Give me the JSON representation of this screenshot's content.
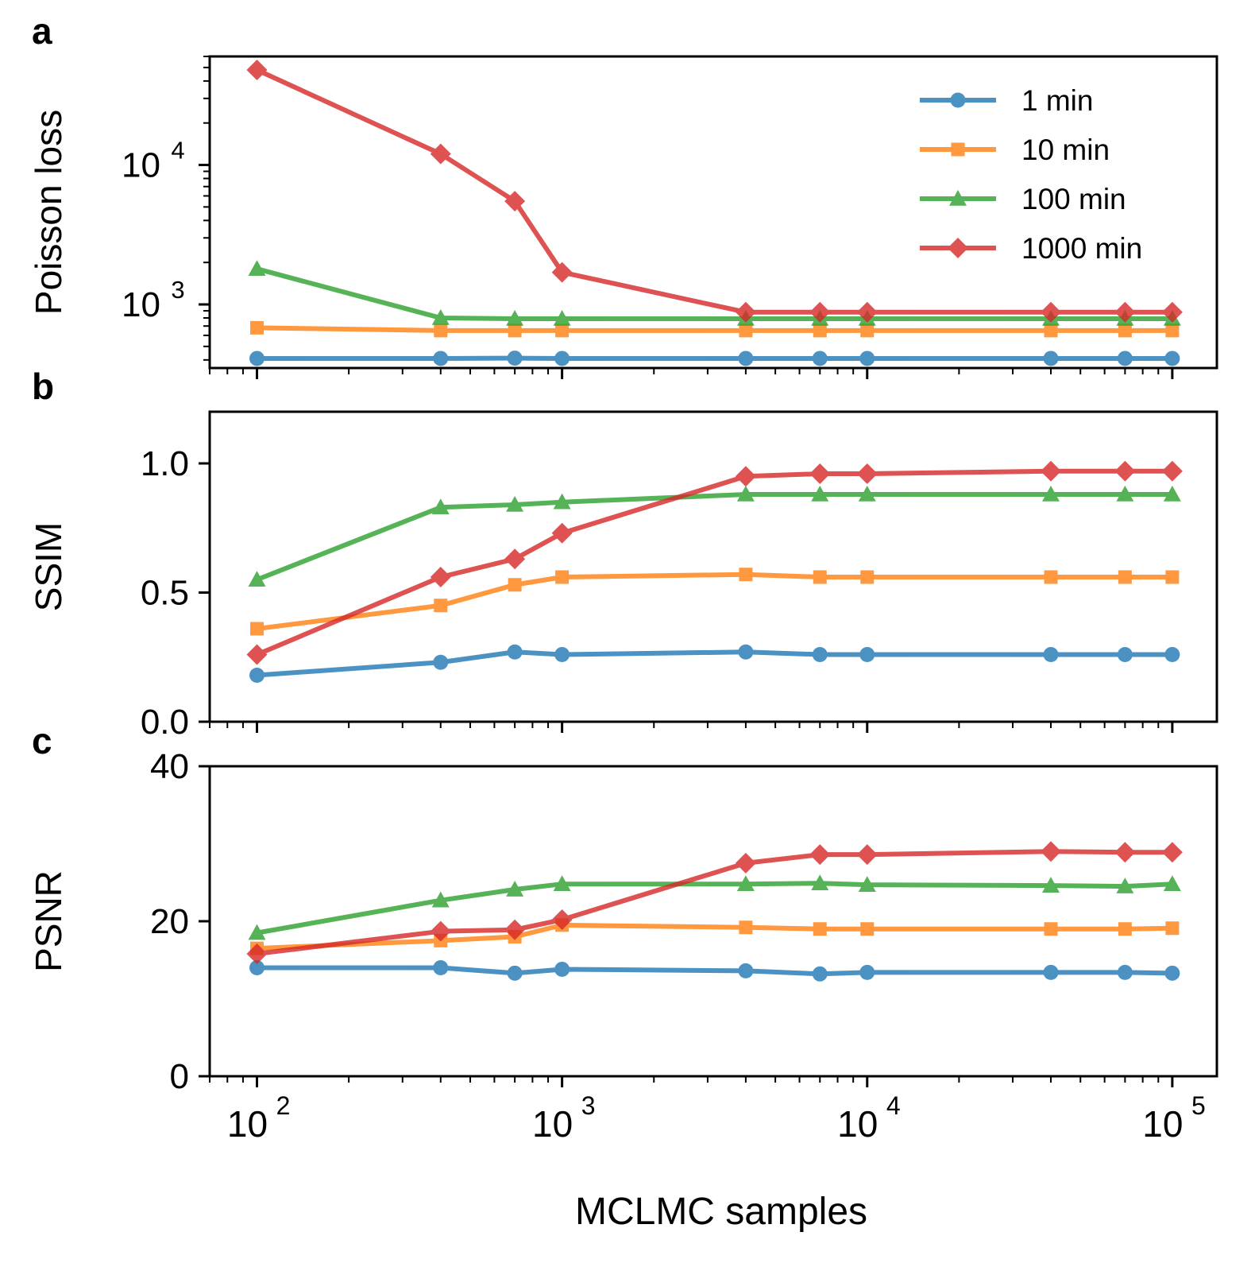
{
  "chart_data": [
    {
      "type": "line",
      "panel_label": "a",
      "ylabel": "Poisson loss",
      "xscale": "log",
      "yscale": "log",
      "xlim": [
        70,
        140000
      ],
      "ylim": [
        350,
        60000
      ],
      "yticks_major": [
        {
          "value": 1000,
          "base": "10",
          "exp": "3"
        },
        {
          "value": 10000,
          "base": "10",
          "exp": "4"
        }
      ],
      "x": [
        100,
        400,
        700,
        1000,
        4000,
        7000,
        10000,
        40000,
        70000,
        100000
      ],
      "series": [
        {
          "name": "1 min",
          "color": "#1f77b4",
          "marker": "circle",
          "values": [
            410,
            410,
            412,
            410,
            410,
            410,
            410,
            410,
            410,
            410
          ]
        },
        {
          "name": "10 min",
          "color": "#ff7f0e",
          "marker": "square",
          "values": [
            680,
            650,
            650,
            650,
            650,
            650,
            650,
            650,
            650,
            650
          ]
        },
        {
          "name": "100 min",
          "color": "#2ca02c",
          "marker": "triangle",
          "values": [
            1800,
            800,
            790,
            790,
            790,
            790,
            790,
            790,
            790,
            790
          ]
        },
        {
          "name": "1000 min",
          "color": "#d62728",
          "marker": "diamond",
          "values": [
            48000,
            12000,
            5500,
            1700,
            880,
            880,
            880,
            880,
            880,
            880
          ]
        }
      ],
      "legend": "top-right"
    },
    {
      "type": "line",
      "panel_label": "b",
      "ylabel": "SSIM",
      "xscale": "log",
      "yscale": "linear",
      "xlim": [
        70,
        140000
      ],
      "ylim": [
        0,
        1.2
      ],
      "yticks": [
        "0.0",
        "0.5",
        "1.0"
      ],
      "x": [
        100,
        400,
        700,
        1000,
        4000,
        7000,
        10000,
        40000,
        70000,
        100000
      ],
      "series": [
        {
          "name": "1 min",
          "color": "#1f77b4",
          "marker": "circle",
          "values": [
            0.18,
            0.23,
            0.27,
            0.26,
            0.27,
            0.26,
            0.26,
            0.26,
            0.26,
            0.26
          ]
        },
        {
          "name": "10 min",
          "color": "#ff7f0e",
          "marker": "square",
          "values": [
            0.36,
            0.45,
            0.53,
            0.56,
            0.57,
            0.56,
            0.56,
            0.56,
            0.56,
            0.56
          ]
        },
        {
          "name": "100 min",
          "color": "#2ca02c",
          "marker": "triangle",
          "values": [
            0.55,
            0.83,
            0.84,
            0.85,
            0.88,
            0.88,
            0.88,
            0.88,
            0.88,
            0.88
          ]
        },
        {
          "name": "1000 min",
          "color": "#d62728",
          "marker": "diamond",
          "values": [
            0.26,
            0.56,
            0.63,
            0.73,
            0.95,
            0.96,
            0.96,
            0.97,
            0.97,
            0.97
          ]
        }
      ]
    },
    {
      "type": "line",
      "panel_label": "c",
      "ylabel": "PSNR",
      "xlabel": "MCLMC samples",
      "xscale": "log",
      "yscale": "linear",
      "xlim": [
        70,
        140000
      ],
      "ylim": [
        0,
        40
      ],
      "yticks": [
        "0",
        "20",
        "40"
      ],
      "xticks_major": [
        {
          "value": 100,
          "base": "10",
          "exp": "2"
        },
        {
          "value": 1000,
          "base": "10",
          "exp": "3"
        },
        {
          "value": 10000,
          "base": "10",
          "exp": "4"
        },
        {
          "value": 100000,
          "base": "10",
          "exp": "5"
        }
      ],
      "x": [
        100,
        400,
        700,
        1000,
        4000,
        7000,
        10000,
        40000,
        70000,
        100000
      ],
      "series": [
        {
          "name": "1 min",
          "color": "#1f77b4",
          "marker": "circle",
          "values": [
            14.0,
            14.0,
            13.3,
            13.8,
            13.6,
            13.2,
            13.4,
            13.4,
            13.4,
            13.3
          ]
        },
        {
          "name": "10 min",
          "color": "#ff7f0e",
          "marker": "square",
          "values": [
            16.5,
            17.5,
            18.0,
            19.5,
            19.2,
            19.0,
            19.0,
            19.0,
            19.0,
            19.1
          ]
        },
        {
          "name": "100 min",
          "color": "#2ca02c",
          "marker": "triangle",
          "values": [
            18.5,
            22.7,
            24.1,
            24.8,
            24.8,
            24.9,
            24.7,
            24.6,
            24.5,
            24.8
          ]
        },
        {
          "name": "1000 min",
          "color": "#d62728",
          "marker": "diamond",
          "values": [
            15.8,
            18.7,
            18.9,
            20.2,
            27.5,
            28.6,
            28.6,
            29.0,
            28.9,
            28.9
          ]
        }
      ]
    }
  ]
}
